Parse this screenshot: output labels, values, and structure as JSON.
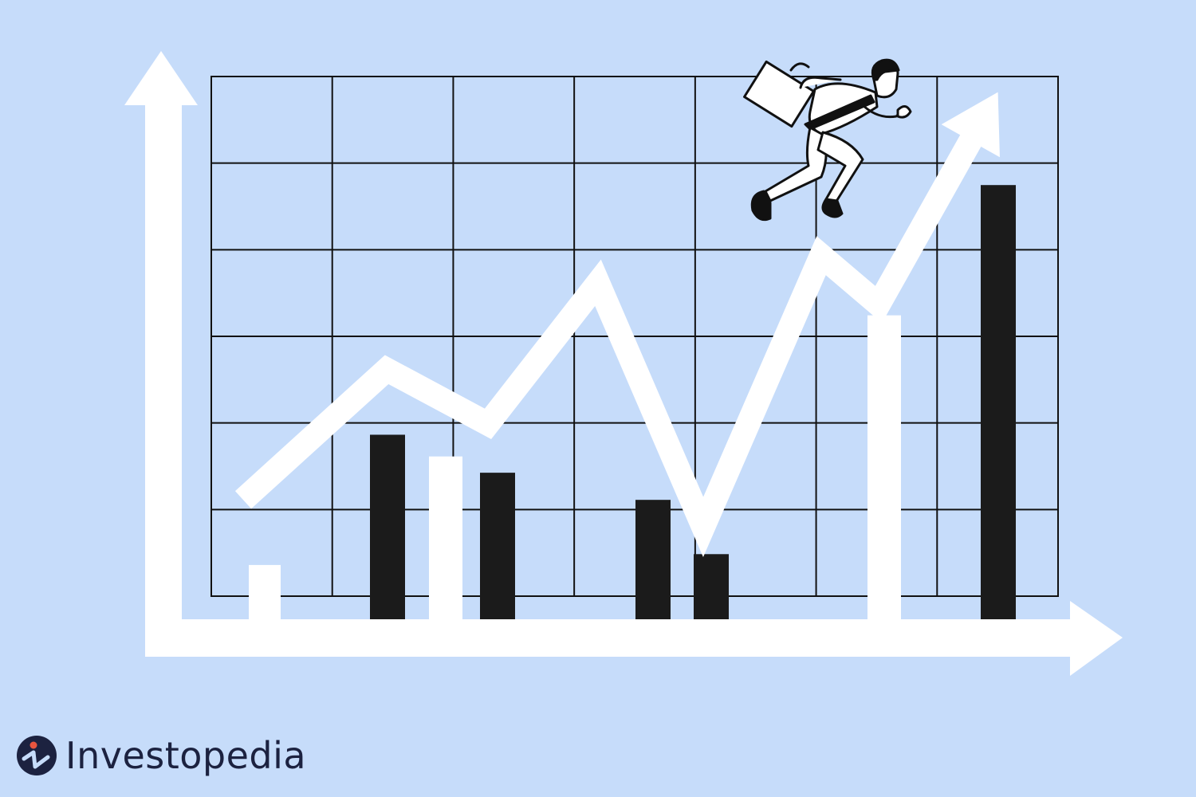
{
  "colors": {
    "background": "#c6dcfa",
    "bar_white": "#ffffff",
    "bar_black": "#1b1b1b",
    "grid": "#111111",
    "logo_text": "#1c2240",
    "logo_dot": "#e8553f"
  },
  "illustration": {
    "grid": {
      "rows": 6,
      "columns": 7
    },
    "bars": [
      {
        "fill": "white",
        "value": 0.1
      },
      {
        "fill": "black",
        "value": 0.34
      },
      {
        "fill": "white",
        "value": 0.3
      },
      {
        "fill": "black",
        "value": 0.27
      },
      {
        "fill": "black",
        "value": 0.22
      },
      {
        "fill": "black",
        "value": 0.12
      },
      {
        "fill": "white",
        "value": 0.56
      },
      {
        "fill": "black",
        "value": 0.8
      }
    ],
    "trend_line": {
      "direction": "up",
      "values": [
        0.22,
        0.46,
        0.36,
        0.62,
        0.17,
        0.67,
        0.58,
        0.92
      ]
    },
    "figure": "businessman-running-with-briefcase"
  },
  "brand": {
    "name": "Investopedia",
    "icon": "investopedia-logo-icon"
  }
}
